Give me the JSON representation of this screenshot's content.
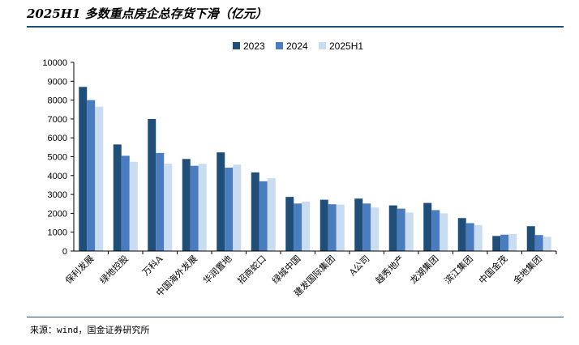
{
  "title": "2025H1 多数重点房企总存货下滑（亿元）",
  "source": "来源：wind，国金证券研究所",
  "chart_data": {
    "type": "bar",
    "title": "2025H1 多数重点房企总存货下滑（亿元）",
    "xlabel": "",
    "ylabel": "",
    "ylim": [
      0,
      10000
    ],
    "yticks": [
      0,
      1000,
      2000,
      3000,
      4000,
      5000,
      6000,
      7000,
      8000,
      9000,
      10000
    ],
    "grid": false,
    "legend_position": "top-center",
    "categories": [
      "保利发展",
      "绿地控股",
      "万科A",
      "中国海外发展",
      "华润置地",
      "招商蛇口",
      "绿城中国",
      "建发国际集团",
      "A公司",
      "越秀地产",
      "龙湖集团",
      "滨江集团",
      "中国金茂",
      "金地集团"
    ],
    "series": [
      {
        "name": "2023",
        "color": "#1f4e79",
        "values": [
          8700,
          5650,
          7000,
          4880,
          5230,
          4170,
          2870,
          2720,
          2780,
          2420,
          2550,
          1750,
          800,
          1320
        ]
      },
      {
        "name": "2024",
        "color": "#4a7dbf",
        "values": [
          8000,
          5050,
          5200,
          4520,
          4420,
          3700,
          2520,
          2480,
          2520,
          2250,
          2170,
          1480,
          870,
          850
        ]
      },
      {
        "name": "2025H1",
        "color": "#c9dcf0",
        "values": [
          7650,
          4730,
          4630,
          4620,
          4580,
          3860,
          2620,
          2460,
          2310,
          2040,
          2000,
          1380,
          900,
          760
        ]
      }
    ]
  }
}
